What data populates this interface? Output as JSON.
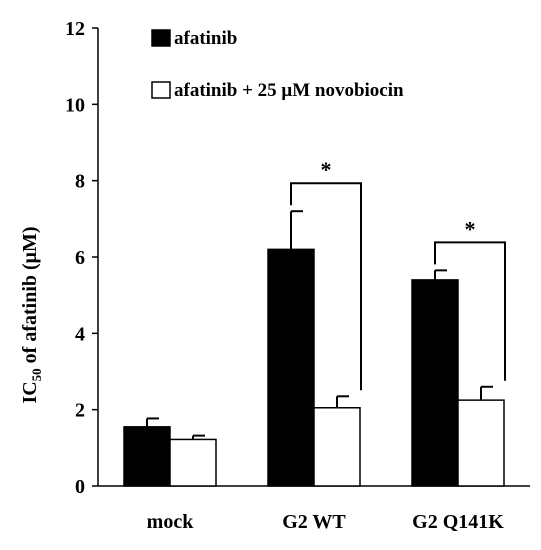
{
  "chart_data": {
    "type": "bar",
    "categories": [
      "mock",
      "G2 WT",
      "G2 Q141K"
    ],
    "series": [
      {
        "name": "afatinib",
        "values": [
          1.55,
          6.2,
          5.4
        ],
        "errors": [
          0.22,
          1.0,
          0.25
        ],
        "fill": "#000000"
      },
      {
        "name": "afatinib + 25 μM novobiocin",
        "values": [
          1.22,
          2.05,
          2.25
        ],
        "errors": [
          0.1,
          0.3,
          0.35
        ],
        "fill": "#ffffff"
      }
    ],
    "ylabel": {
      "main": "IC",
      "sub": "50",
      "rest": " of afatinib (μM)"
    },
    "ylim": [
      0,
      12
    ],
    "yticks": [
      "0",
      "2",
      "4",
      "6",
      "8",
      "10",
      "12"
    ],
    "significance": [
      {
        "category": "G2 WT",
        "label": "*"
      },
      {
        "category": "G2 Q141K",
        "label": "*"
      }
    ],
    "legend_position": "top",
    "grid": false
  }
}
